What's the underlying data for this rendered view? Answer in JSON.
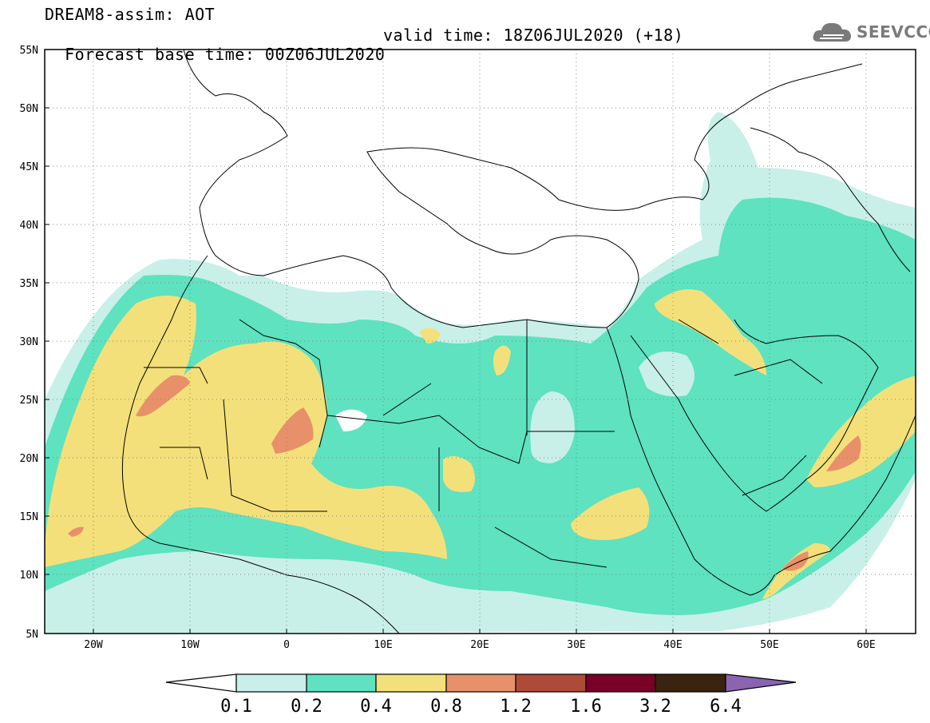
{
  "header": {
    "title": "DREAM8-assim: AOT",
    "base_time": "Forecast base time: 00Z06JUL2020",
    "valid_time": "valid time: 18Z06JUL2020 (+18)"
  },
  "logo": {
    "text": "SEEVCCC",
    "icon": "cloud-logo-icon"
  },
  "map": {
    "lon_range": [
      -25,
      65
    ],
    "lat_range": [
      5,
      55
    ],
    "grid": "dotted",
    "x_ticks": [
      "20W",
      "10W",
      "0",
      "10E",
      "20E",
      "30E",
      "40E",
      "50E",
      "60E"
    ],
    "y_ticks": [
      "55N",
      "50N",
      "45N",
      "40N",
      "35N",
      "30N",
      "25N",
      "20N",
      "15N",
      "10N",
      "5N"
    ]
  },
  "colorbar": {
    "levels": [
      "0.1",
      "0.2",
      "0.4",
      "0.8",
      "1.2",
      "1.6",
      "3.2",
      "6.4"
    ],
    "colors": [
      "#ffffff",
      "#c8f0e8",
      "#5ee2c0",
      "#f4e07a",
      "#e8906a",
      "#b04a38",
      "#7a0028",
      "#3a2410",
      "#8a64b0"
    ]
  }
}
